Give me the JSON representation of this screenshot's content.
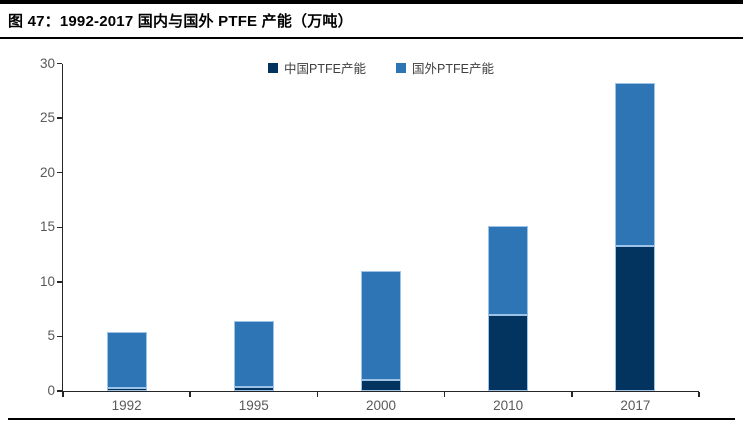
{
  "figure": {
    "title": "图 47：1992-2017 国内与国外 PTFE 产能（万吨）"
  },
  "chart_data": {
    "type": "bar",
    "stacked": true,
    "title": "1992-2017 国内与国外 PTFE 产能（万吨）",
    "unit": "万吨",
    "categories": [
      "1992",
      "1995",
      "2000",
      "2010",
      "2017"
    ],
    "series": [
      {
        "name": "中国PTFE产能",
        "color": "#03335F",
        "values": [
          0.3,
          0.4,
          1.0,
          7.0,
          13.3
        ]
      },
      {
        "name": "国外PTFE产能",
        "color": "#2E75B5",
        "values": [
          5.1,
          6.0,
          10.0,
          8.1,
          14.9
        ]
      }
    ],
    "ylim": [
      0,
      30
    ],
    "yticks": [
      0,
      5,
      10,
      15,
      20,
      25,
      30
    ],
    "grid": false,
    "legend_position": "top-center",
    "axis_color": "#262626",
    "tick_label_color": "#595959",
    "segment_border_color": "#9DC3E6"
  }
}
